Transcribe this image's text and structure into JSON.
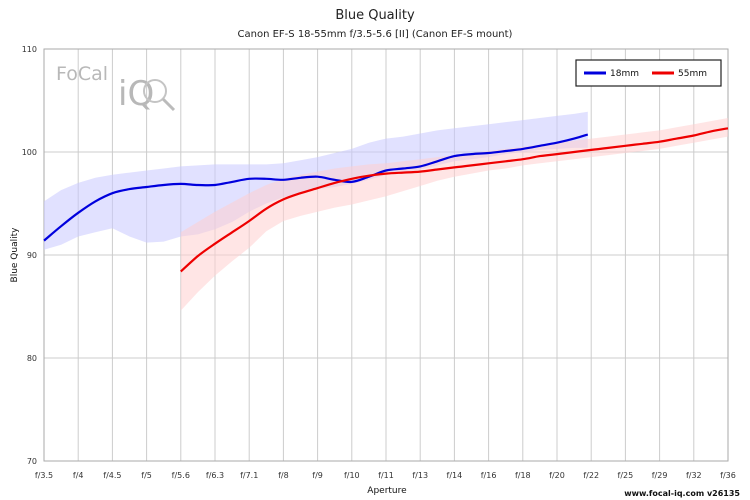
{
  "chart_data": {
    "type": "line",
    "title": "Blue Quality",
    "subtitle": "Canon EF-S 18-55mm f/3.5-5.6 [II] (Canon EF-S mount)",
    "xlabel": "Aperture",
    "ylabel": "Blue Quality",
    "categories": [
      "f/3.5",
      "f/4",
      "f/4.5",
      "f/5",
      "f/5.6",
      "f/6.3",
      "f/7.1",
      "f/8",
      "f/9",
      "f/10",
      "f/11",
      "f/13",
      "f/14",
      "f/16",
      "f/18",
      "f/20",
      "f/22",
      "f/25",
      "f/29",
      "f/32",
      "f/36"
    ],
    "ylim": [
      70,
      110
    ],
    "yticks": [
      70,
      80,
      90,
      100,
      110
    ],
    "grid": true,
    "legend_position": "top-right",
    "series": [
      {
        "name": "18mm",
        "color": "#0000dd",
        "band_color": "#c8c8ff",
        "x": [
          0,
          0.5,
          1,
          1.5,
          2,
          2.5,
          3,
          3.5,
          4,
          4.5,
          5,
          5.5,
          6,
          6.5,
          7,
          7.5,
          8,
          8.5,
          9,
          9.5,
          10,
          10.5,
          11,
          11.5,
          12,
          12.5,
          13,
          13.5,
          14,
          14.5,
          15,
          15.5,
          15.9
        ],
        "values": [
          91.4,
          92.8,
          94.1,
          95.2,
          96.0,
          96.4,
          96.6,
          96.8,
          96.9,
          96.8,
          96.8,
          97.1,
          97.4,
          97.4,
          97.3,
          97.5,
          97.6,
          97.3,
          97.1,
          97.6,
          98.2,
          98.4,
          98.6,
          99.1,
          99.6,
          99.8,
          99.9,
          100.1,
          100.3,
          100.6,
          100.9,
          101.3,
          101.7
        ],
        "lower": [
          90.5,
          91.0,
          91.8,
          92.2,
          92.6,
          91.8,
          91.2,
          91.3,
          91.8,
          92.0,
          92.5,
          93.2,
          94.2,
          95.0,
          95.6,
          96.0,
          96.4,
          96.6,
          96.9,
          97.3,
          97.8,
          98.0,
          98.3,
          98.7,
          99.1,
          99.3,
          99.5,
          99.8,
          100.0,
          100.2,
          100.3,
          100.4,
          100.4
        ],
        "upper": [
          95.2,
          96.3,
          97.0,
          97.5,
          97.8,
          98.0,
          98.2,
          98.4,
          98.6,
          98.7,
          98.8,
          98.8,
          98.8,
          98.8,
          98.9,
          99.2,
          99.5,
          99.9,
          100.3,
          100.9,
          101.3,
          101.5,
          101.8,
          102.1,
          102.3,
          102.5,
          102.7,
          102.9,
          103.1,
          103.3,
          103.5,
          103.7,
          103.9
        ]
      },
      {
        "name": "55mm",
        "color": "#ee0000",
        "band_color": "#ffd0d0",
        "x": [
          4,
          4.5,
          5,
          5.5,
          6,
          6.5,
          7,
          7.5,
          8,
          8.5,
          9,
          9.5,
          10,
          10.5,
          11,
          11.5,
          12,
          12.5,
          13,
          13.5,
          14,
          14.5,
          15,
          15.5,
          16,
          16.5,
          17,
          17.5,
          18,
          18.5,
          19,
          19.5,
          20
        ],
        "values": [
          88.4,
          89.9,
          91.1,
          92.2,
          93.3,
          94.5,
          95.4,
          96.0,
          96.5,
          97.0,
          97.4,
          97.7,
          97.9,
          98.0,
          98.1,
          98.3,
          98.5,
          98.7,
          98.9,
          99.1,
          99.3,
          99.6,
          99.8,
          100.0,
          100.2,
          100.4,
          100.6,
          100.8,
          101.0,
          101.3,
          101.6,
          102.0,
          102.3
        ],
        "lower": [
          84.6,
          86.4,
          88.0,
          89.4,
          90.7,
          92.3,
          93.3,
          93.8,
          94.2,
          94.6,
          94.9,
          95.3,
          95.7,
          96.2,
          96.7,
          97.2,
          97.6,
          97.9,
          98.2,
          98.4,
          98.7,
          98.9,
          99.1,
          99.3,
          99.5,
          99.7,
          99.9,
          100.1,
          100.3,
          100.6,
          100.9,
          101.2,
          101.5
        ],
        "upper": [
          92.2,
          93.2,
          94.2,
          95.1,
          96.0,
          96.8,
          97.4,
          97.8,
          98.1,
          98.4,
          98.6,
          98.8,
          98.9,
          99.1,
          99.3,
          99.5,
          99.7,
          99.9,
          100.1,
          100.3,
          100.5,
          100.7,
          100.9,
          101.1,
          101.3,
          101.5,
          101.7,
          101.9,
          102.1,
          102.4,
          102.7,
          103.0,
          103.3
        ]
      }
    ]
  },
  "logo": {
    "text_top": "FoCal",
    "text_bottom": "iQ"
  },
  "footer": {
    "credit": "www.focal-iq.com  v26135"
  }
}
